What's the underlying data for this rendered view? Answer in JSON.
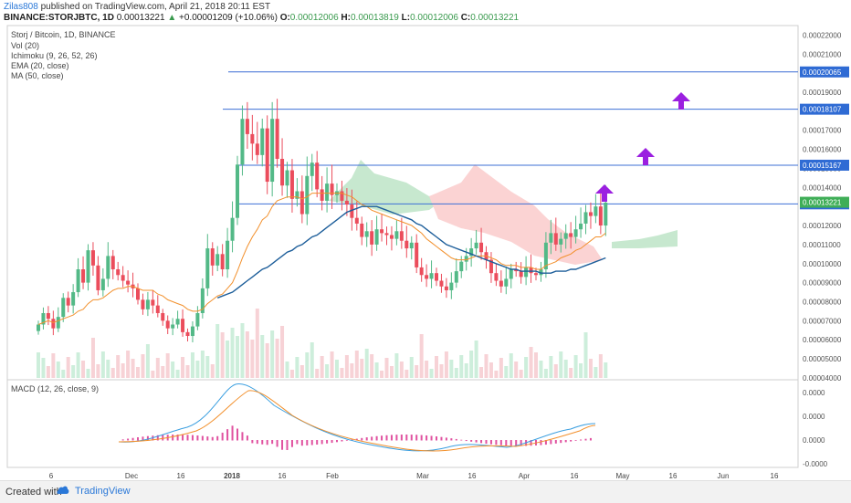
{
  "header": {
    "user": "Zilas808",
    "published": " published on TradingView.com, April 21, 2018 20:11 EST",
    "symbol": "BINANCE:STORJBTC, 1D",
    "last": "0.00013221",
    "change": "+0.00001209 (+10.06%)",
    "o_label": "O:",
    "o": "0.00012006",
    "h_label": "H:",
    "h": "0.00013819",
    "l_label": "L:",
    "l": "0.00012006",
    "c_label": "C:",
    "c": "0.00013221"
  },
  "legend": {
    "title": "Storj / Bitcoin, 1D, BINANCE",
    "vol": "Vol (20)",
    "ichimoku": "Ichimoku (9, 26, 52, 26)",
    "ema": "EMA (20, close)",
    "ma": "MA (50, close)",
    "macd": "MACD (12, 26, close, 9)"
  },
  "footer": {
    "created": "Created with",
    "brand": "TradingView"
  },
  "colors": {
    "up": "#53b987",
    "down": "#eb4d5c",
    "hline": "#3d6fd6",
    "ema": "#f2902c",
    "ma": "#1d5e9a",
    "cloud_red": "#fbd3d3",
    "cloud_green": "#c7e8cf",
    "arrow": "#9b1fe0",
    "macd": "#3b9fe0",
    "signal": "#f2902c",
    "hist": "#e052a0"
  },
  "chart_data": {
    "type": "candlestick",
    "ylim": [
      3.9e-05,
      0.000225
    ],
    "y_ticks": [
      "0.00022000",
      "0.00021000",
      "0.00020000",
      "0.00019000",
      "0.00018000",
      "0.00017000",
      "0.00016000",
      "0.00015000",
      "0.00014000",
      "0.00013000",
      "0.00012000",
      "0.00011000",
      "0.00010000",
      "0.00009000",
      "0.00008000",
      "0.00007000",
      "0.00006000",
      "0.00005000",
      "0.00004000"
    ],
    "x_ticks": [
      "6",
      "Dec",
      "16",
      "2018",
      "16",
      "Feb",
      "Mar",
      "16",
      "Apr",
      "16",
      "May",
      "16",
      "Jun",
      "16"
    ],
    "price_levels": [
      "0.00020065",
      "0.00018107",
      "0.00015167",
      "0.00013137"
    ],
    "last_price": "0.00013221",
    "macd_ticks": [
      "0.0000",
      "0.0000",
      "0.0000",
      "-0.0000"
    ],
    "closes": [
      6.8e-05,
      7.4e-05,
      7.1e-05,
      6.6e-05,
      7.2e-05,
      8.2e-05,
      7.8e-05,
      8.5e-05,
      9.7e-05,
      9e-05,
      0.000107,
      9.9e-05,
      8.6e-05,
      9.2e-05,
      0.000104,
      9.7e-05,
      9.4e-05,
      9.1e-05,
      8.9e-05,
      8.7e-05,
      8.1e-05,
      7.6e-05,
      8.1e-05,
      7.8e-05,
      7.4e-05,
      7e-05,
      6.6e-05,
      6.8e-05,
      7.1e-05,
      6.4e-05,
      6.2e-05,
      6.7e-05,
      7.4e-05,
      8.7e-05,
      0.000108,
      9.9e-05,
      0.000105,
      9.7e-05,
      0.000112,
      0.000124,
      0.000152,
      0.000176,
      0.000168,
      0.000163,
      0.000157,
      0.000171,
      0.000143,
      0.000176,
      0.000155,
      0.000141,
      0.000149,
      0.000134,
      0.000138,
      0.000126,
      0.000146,
      0.000153,
      0.000139,
      0.000133,
      0.000142,
      0.000136,
      0.000138,
      0.000133,
      0.000131,
      0.000124,
      0.000121,
      0.000114,
      0.000117,
      0.00011,
      0.000118,
      0.000116,
      0.000115,
      0.000113,
      0.000117,
      0.000112,
      0.000108,
      0.000111,
      9.8e-05,
      9.4e-05,
      9.2e-05,
      9.5e-05,
      9.1e-05,
      8.8e-05,
      8.6e-05,
      9e-05,
      9.6e-05,
      0.000101,
      0.000104,
      0.000108,
      0.000111,
      0.000106,
      0.000102,
      9.5e-05,
      9.1e-05,
      8.8e-05,
      9.2e-05,
      9.7e-05,
      9.6e-05,
      9.3e-05,
      9.8e-05,
      9.5e-05,
      9.4e-05,
      9.7e-05,
      0.000111,
      0.000116,
      0.00011,
      0.000113,
      0.000116,
      0.000114,
      0.000118,
      0.000121,
      0.000127,
      0.000125,
      0.00013,
      0.00012,
      0.000132
    ],
    "ema": [
      6.8e-05,
      6.9e-05,
      7e-05,
      6.9e-05,
      7e-05,
      7.1e-05,
      7.2e-05,
      7.3e-05,
      7.5e-05,
      7.6e-05,
      7.9e-05,
      8.1e-05,
      8.1e-05,
      8.2e-05,
      8.4e-05,
      8.6e-05,
      8.7e-05,
      8.7e-05,
      8.8e-05,
      8.8e-05,
      8.7e-05,
      8.6e-05,
      8.6e-05,
      8.6e-05,
      8.4e-05,
      8.3e-05,
      8.1e-05,
      8e-05,
      7.9e-05,
      7.8e-05,
      7.6e-05,
      7.5e-05,
      7.5e-05,
      7.6e-05,
      7.9e-05,
      8.1e-05,
      8.3e-05,
      8.4e-05,
      8.7e-05,
      9e-05,
      9.6e-05,
      0.000103,
      0.000109,
      0.000114,
      0.000118,
      0.000123,
      0.000125,
      0.00013,
      0.000133,
      0.000134,
      0.000135,
      0.000135,
      0.000135,
      0.000134,
      0.000135,
      0.000137,
      0.000137,
      0.000137,
      0.000137,
      0.000137,
      0.000137,
      0.000137,
      0.000136,
      0.000135,
      0.000133,
      0.000131,
      0.00013,
      0.000128,
      0.000127,
      0.000126,
      0.000125,
      0.000124,
      0.000123,
      0.000122,
      0.000121,
      0.00012,
      0.000118,
      0.000116,
      0.000113,
      0.000111,
      0.000109,
      0.000107,
      0.000105,
      0.000103,
      0.000102,
      0.000102,
      0.000102,
      0.000103,
      0.000104,
      0.000104,
      0.000104,
      0.000103,
      0.000102,
      0.0001,
      9.9e-05,
      9.9e-05,
      9.9e-05,
      9.8e-05,
      9.8e-05,
      9.8e-05,
      9.7e-05,
      9.7e-05,
      9.9e-05,
      0.0001,
      0.000101,
      0.000103,
      0.000104,
      0.000105,
      0.000107,
      0.000108,
      0.00011,
      0.000112,
      0.000114,
      0.000114,
      0.000116
    ],
    "ma": [
      null,
      null,
      null,
      null,
      null,
      null,
      null,
      null,
      null,
      null,
      null,
      null,
      null,
      null,
      null,
      null,
      null,
      null,
      null,
      null,
      null,
      null,
      null,
      null,
      null,
      null,
      null,
      null,
      null,
      null,
      null,
      null,
      null,
      null,
      null,
      null,
      8.2e-05,
      8.3e-05,
      8.4e-05,
      8.5e-05,
      8.7e-05,
      8.9e-05,
      9.1e-05,
      9.3e-05,
      9.5e-05,
      9.7e-05,
      9.8e-05,
      0.0001,
      0.000102,
      0.000104,
      0.000106,
      0.000107,
      0.000109,
      0.00011,
      0.000112,
      0.000114,
      0.000115,
      0.000117,
      0.000119,
      0.000121,
      0.000123,
      0.000125,
      0.000127,
      0.000128,
      0.000129,
      0.00013,
      0.00013,
      0.00013,
      0.00013,
      0.000129,
      0.000128,
      0.000127,
      0.000126,
      0.000125,
      0.000124,
      0.000123,
      0.000121,
      0.00012,
      0.000118,
      0.000116,
      0.000114,
      0.000112,
      0.00011,
      0.000109,
      0.000108,
      0.000107,
      0.000106,
      0.000105,
      0.000104,
      0.000103,
      0.000102,
      0.000101,
      0.0001,
      9.9e-05,
      9.8e-05,
      9.7e-05,
      9.7e-05,
      9.6e-05,
      9.6e-05,
      9.6e-05,
      9.6e-05,
      9.5e-05,
      9.5e-05,
      9.5e-05,
      9.6e-05,
      9.6e-05,
      9.6e-05,
      9.7e-05,
      9.7e-05,
      9.8e-05,
      9.9e-05,
      0.0001,
      0.000101,
      0.000102,
      0.000103
    ]
  }
}
